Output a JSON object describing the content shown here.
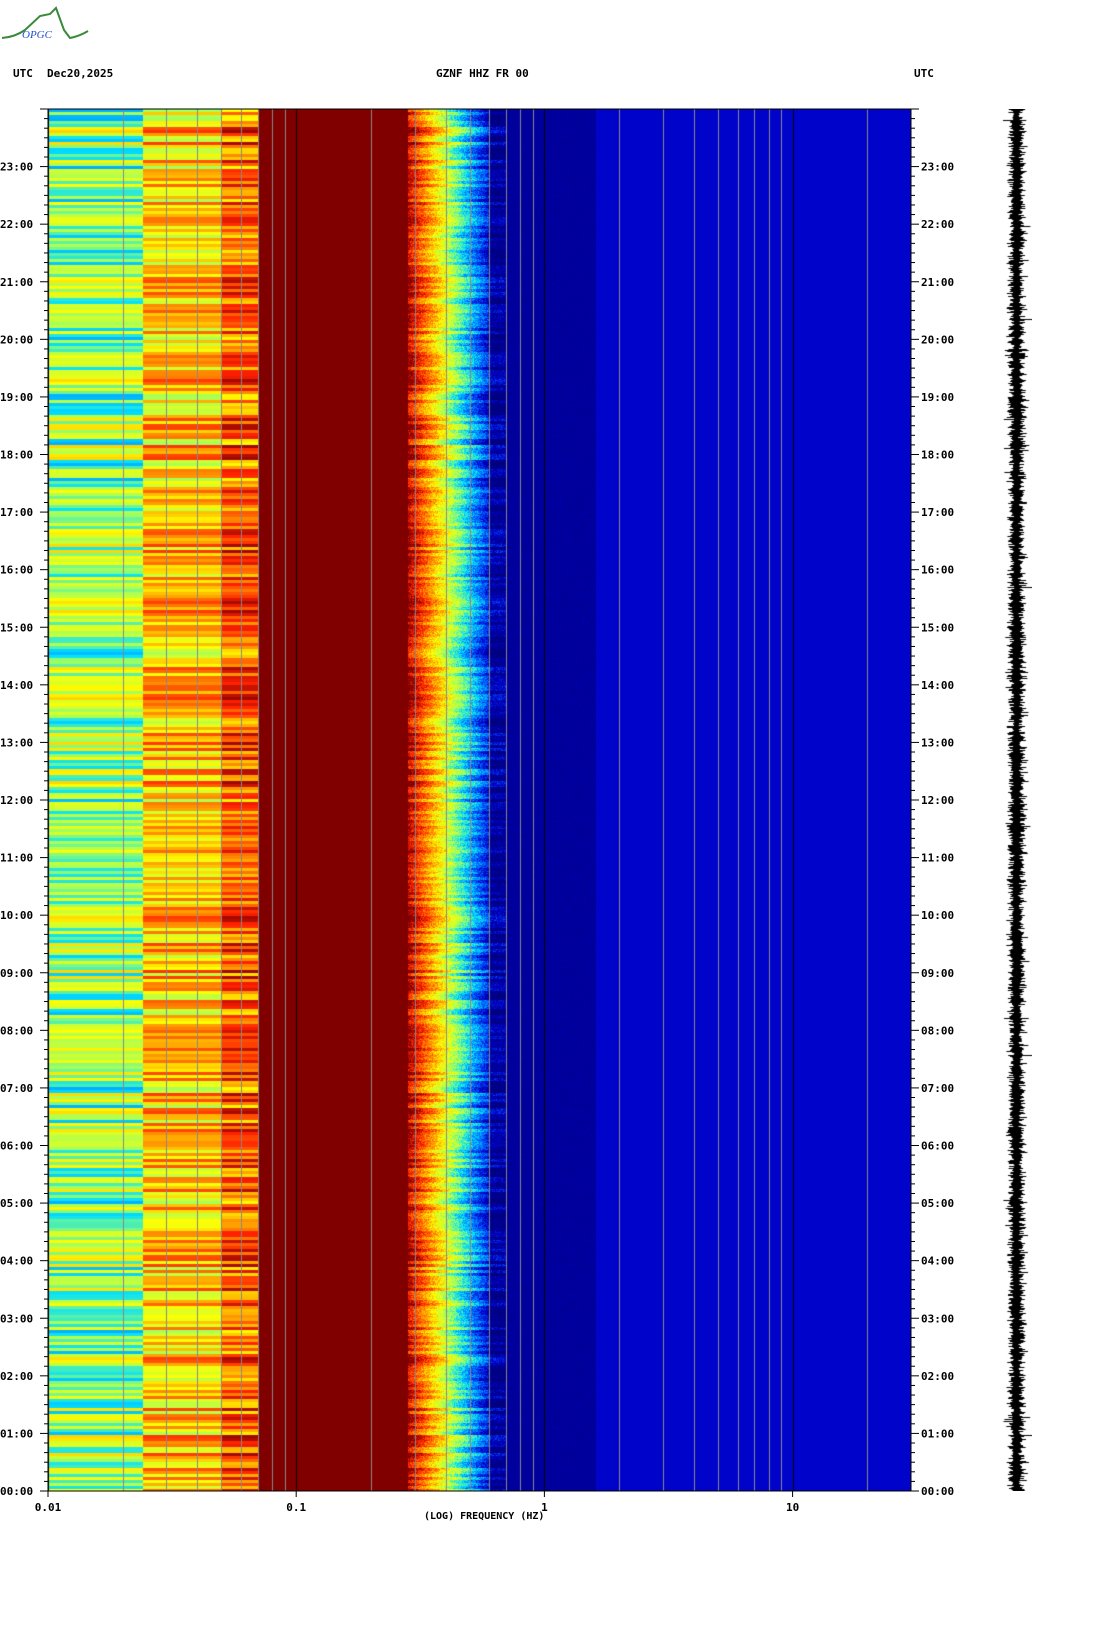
{
  "logo": {
    "text": "OPGC"
  },
  "header": {
    "left_tz": "UTC",
    "date": "Dec20,2025",
    "station": "GZNF HHZ FR 00",
    "right_tz": "UTC"
  },
  "chart_data": {
    "type": "heatmap",
    "title": "GZNF HHZ FR 00",
    "xlabel": "(LOG) FREQUENCY (HZ)",
    "x_scale": "log",
    "xlim": [
      0.01,
      30
    ],
    "x_ticks": [
      {
        "value": 0.01,
        "label": "0.01"
      },
      {
        "value": 0.1,
        "label": "0.1"
      },
      {
        "value": 1,
        "label": "1"
      },
      {
        "value": 10,
        "label": "10"
      }
    ],
    "ylabel": "UTC",
    "ylim_hours": [
      0,
      24
    ],
    "y_ticks": [
      "00:00",
      "01:00",
      "02:00",
      "03:00",
      "04:00",
      "05:00",
      "06:00",
      "07:00",
      "08:00",
      "09:00",
      "10:00",
      "11:00",
      "12:00",
      "13:00",
      "14:00",
      "15:00",
      "16:00",
      "17:00",
      "18:00",
      "19:00",
      "20:00",
      "21:00",
      "22:00",
      "23:00"
    ],
    "colormap": [
      "#000080",
      "#0000c8",
      "#0060ff",
      "#00e0ff",
      "#a0ff60",
      "#ffff00",
      "#ff9000",
      "#ff2000",
      "#800000"
    ],
    "bands": [
      {
        "fmin": 0.01,
        "fmax": 0.024,
        "level": 0.5
      },
      {
        "fmin": 0.024,
        "fmax": 0.05,
        "level": 0.68
      },
      {
        "fmin": 0.05,
        "fmax": 0.07,
        "level": 0.8
      },
      {
        "fmin": 0.07,
        "fmax": 0.28,
        "level": 1.0
      },
      {
        "fmin": 0.28,
        "fmax": 0.6,
        "level": 0.6
      },
      {
        "fmin": 0.6,
        "fmax": 1.6,
        "level": 0.05
      },
      {
        "fmin": 1.6,
        "fmax": 30,
        "level": 0.13
      }
    ],
    "grid": true
  },
  "waveform": {
    "present": true
  }
}
